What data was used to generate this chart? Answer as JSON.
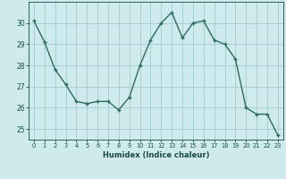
{
  "x": [
    0,
    1,
    2,
    3,
    4,
    5,
    6,
    7,
    8,
    9,
    10,
    11,
    12,
    13,
    14,
    15,
    16,
    17,
    18,
    19,
    20,
    21,
    22,
    23
  ],
  "y": [
    30.1,
    29.1,
    27.8,
    27.1,
    26.3,
    26.2,
    26.3,
    26.3,
    25.9,
    26.5,
    28.0,
    29.2,
    30.0,
    30.5,
    29.3,
    30.0,
    30.1,
    29.2,
    29.0,
    28.3,
    26.0,
    25.7,
    25.7,
    24.7
  ],
  "xlabel": "Humidex (Indice chaleur)",
  "ylim": [
    24.5,
    31.0
  ],
  "xlim": [
    -0.5,
    23.5
  ],
  "yticks": [
    25,
    26,
    27,
    28,
    29,
    30
  ],
  "xticks": [
    0,
    1,
    2,
    3,
    4,
    5,
    6,
    7,
    8,
    9,
    10,
    11,
    12,
    13,
    14,
    15,
    16,
    17,
    18,
    19,
    20,
    21,
    22,
    23
  ],
  "line_color": "#2d6b5e",
  "marker_color": "#2d6b5e",
  "bg_color": "#ceeaec",
  "grid_color": "#a8cfd4",
  "tick_label_color": "#1a4a40",
  "xlabel_fontsize": 6.0,
  "ytick_fontsize": 5.5,
  "xtick_fontsize": 4.8
}
